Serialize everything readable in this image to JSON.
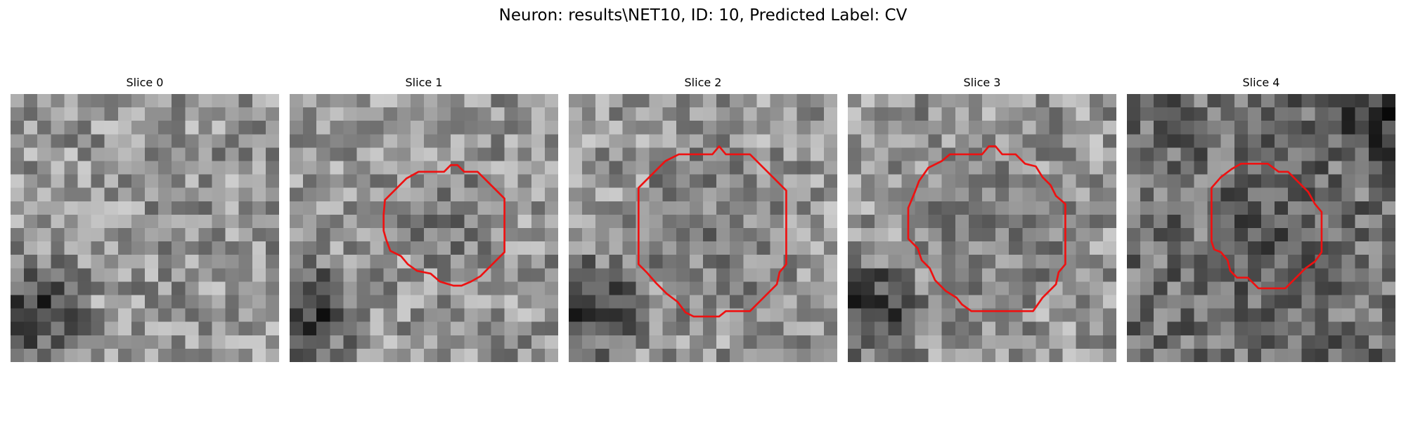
{
  "figure": {
    "title": "Neuron: results\\NET10, ID: 10, Predicted Label: CV"
  },
  "colors": {
    "contour": "#ee1111",
    "background": "#ffffff",
    "text": "#000000"
  },
  "panels": [
    {
      "title": "Slice 0",
      "contour": null,
      "features": {
        "darkCorner": "bottom-left",
        "tone": "mid-light"
      }
    },
    {
      "title": "Slice 1",
      "contour": [
        [
          11.5,
          5.8
        ],
        [
          12.0,
          5.3
        ],
        [
          12.5,
          5.3
        ],
        [
          13.0,
          5.8
        ],
        [
          14.0,
          5.8
        ],
        [
          15.0,
          6.8
        ],
        [
          16.0,
          7.8
        ],
        [
          16.0,
          8.8
        ],
        [
          16.0,
          9.8
        ],
        [
          16.0,
          10.8
        ],
        [
          16.0,
          11.8
        ],
        [
          15.0,
          12.8
        ],
        [
          14.2,
          13.6
        ],
        [
          13.5,
          14.0
        ],
        [
          12.8,
          14.3
        ],
        [
          12.2,
          14.3
        ],
        [
          11.2,
          14.0
        ],
        [
          10.5,
          13.4
        ],
        [
          9.5,
          13.2
        ],
        [
          8.8,
          12.7
        ],
        [
          8.3,
          12.1
        ],
        [
          7.5,
          11.7
        ],
        [
          7.2,
          10.9
        ],
        [
          7.0,
          10.2
        ],
        [
          7.0,
          9.0
        ],
        [
          7.1,
          7.9
        ],
        [
          7.8,
          7.2
        ],
        [
          8.7,
          6.3
        ],
        [
          9.6,
          5.8
        ],
        [
          10.5,
          5.8
        ]
      ],
      "features": {
        "darkCorner": "bottom-left",
        "tone": "mid-light"
      }
    },
    {
      "title": "Slice 2",
      "contour": [
        [
          10.7,
          4.5
        ],
        [
          11.2,
          3.9
        ],
        [
          11.7,
          4.5
        ],
        [
          13.5,
          4.5
        ],
        [
          14.5,
          5.5
        ],
        [
          15.5,
          6.5
        ],
        [
          16.2,
          7.2
        ],
        [
          16.2,
          8.5
        ],
        [
          16.2,
          11.0
        ],
        [
          16.2,
          12.7
        ],
        [
          15.7,
          13.3
        ],
        [
          15.5,
          14.2
        ],
        [
          14.5,
          15.2
        ],
        [
          13.5,
          16.2
        ],
        [
          12.3,
          16.2
        ],
        [
          11.7,
          16.2
        ],
        [
          11.2,
          16.6
        ],
        [
          9.3,
          16.6
        ],
        [
          8.7,
          16.3
        ],
        [
          8.1,
          15.5
        ],
        [
          7.3,
          14.9
        ],
        [
          6.5,
          14.1
        ],
        [
          5.8,
          13.3
        ],
        [
          5.2,
          12.7
        ],
        [
          5.2,
          11.0
        ],
        [
          5.2,
          7.0
        ],
        [
          6.2,
          6.0
        ],
        [
          7.2,
          5.0
        ],
        [
          8.2,
          4.5
        ],
        [
          9.5,
          4.5
        ]
      ],
      "features": {
        "darkCorner": "bottom-left",
        "tone": "mid-light"
      }
    },
    {
      "title": "Slice 3",
      "contour": [
        [
          10.0,
          4.5
        ],
        [
          10.5,
          3.9
        ],
        [
          11.0,
          3.9
        ],
        [
          11.5,
          4.5
        ],
        [
          12.5,
          4.5
        ],
        [
          13.2,
          5.2
        ],
        [
          14.0,
          5.4
        ],
        [
          14.5,
          6.2
        ],
        [
          15.1,
          6.8
        ],
        [
          15.5,
          7.6
        ],
        [
          16.2,
          8.2
        ],
        [
          16.2,
          9.0
        ],
        [
          16.2,
          10.5
        ],
        [
          16.2,
          12.7
        ],
        [
          15.7,
          13.3
        ],
        [
          15.5,
          14.2
        ],
        [
          14.5,
          15.2
        ],
        [
          13.8,
          16.2
        ],
        [
          13.0,
          16.2
        ],
        [
          10.8,
          16.2
        ],
        [
          9.2,
          16.2
        ],
        [
          8.5,
          15.7
        ],
        [
          8.1,
          15.2
        ],
        [
          7.3,
          14.7
        ],
        [
          6.5,
          13.9
        ],
        [
          6.1,
          13.0
        ],
        [
          5.5,
          12.4
        ],
        [
          5.2,
          11.5
        ],
        [
          4.5,
          10.8
        ],
        [
          4.5,
          8.5
        ],
        [
          5.0,
          7.3
        ],
        [
          5.3,
          6.5
        ],
        [
          6.0,
          5.5
        ],
        [
          7.0,
          5.0
        ],
        [
          7.6,
          4.5
        ]
      ],
      "features": {
        "darkCorner": "bottom-left",
        "tone": "mid-light"
      }
    },
    {
      "title": "Slice 4",
      "contour": [
        [
          8.5,
          5.2
        ],
        [
          9.5,
          5.2
        ],
        [
          10.5,
          5.2
        ],
        [
          11.3,
          5.8
        ],
        [
          12.0,
          5.8
        ],
        [
          12.7,
          6.5
        ],
        [
          13.5,
          7.3
        ],
        [
          14.0,
          8.2
        ],
        [
          14.5,
          8.8
        ],
        [
          14.5,
          10.5
        ],
        [
          14.5,
          11.8
        ],
        [
          14.0,
          12.5
        ],
        [
          13.3,
          13.0
        ],
        [
          12.5,
          13.8
        ],
        [
          11.8,
          14.5
        ],
        [
          10.5,
          14.5
        ],
        [
          9.8,
          14.5
        ],
        [
          9.0,
          13.7
        ],
        [
          8.2,
          13.7
        ],
        [
          7.7,
          13.2
        ],
        [
          7.5,
          12.4
        ],
        [
          7.0,
          11.8
        ],
        [
          6.5,
          11.6
        ],
        [
          6.3,
          11.0
        ],
        [
          6.3,
          9.0
        ],
        [
          6.3,
          7.0
        ],
        [
          7.0,
          6.2
        ],
        [
          7.8,
          5.6
        ]
      ],
      "features": {
        "darkCorner": "top-right",
        "tone": "dark"
      }
    }
  ]
}
